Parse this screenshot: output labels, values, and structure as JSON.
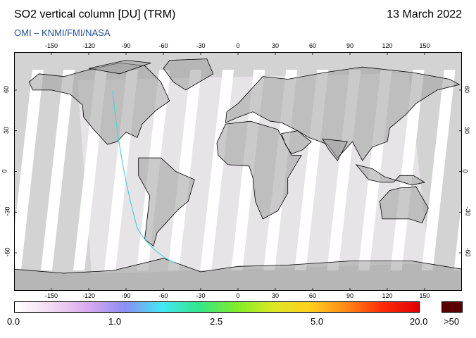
{
  "header": {
    "title": "SO2 vertical column [DU] (TRM)",
    "date": "13 March 2022",
    "subtitle": "OMI  –  KNMI/FMI/NASA"
  },
  "map": {
    "projection": "equirectangular",
    "x_ticks": [
      "-150",
      "-120",
      "-90",
      "-60",
      "-30",
      "0",
      "30",
      "60",
      "90",
      "120",
      "150"
    ],
    "y_ticks": [
      "60",
      "30",
      "0",
      "-30",
      "-60"
    ],
    "colors": {
      "land_nodata": "#9e9e9e",
      "ocean_nodata": "#d3d3d3",
      "swath_background": "#f7f2f8",
      "coastline": "#000000",
      "frame": "#000000"
    }
  },
  "colorbar": {
    "labels": [
      "0.0",
      "1.0",
      "2.5",
      "5.0",
      "20.0",
      ">50"
    ],
    "stops": [
      "#ffffff",
      "#f2d9f2",
      "#d9a9ef",
      "#8c8ef5",
      "#42e8f5",
      "#33e68c",
      "#7ded2a",
      "#d8e824",
      "#ffd21f",
      "#ff8a14",
      "#ff2b0a",
      "#e00000"
    ],
    "over_color": "#5c0000"
  }
}
